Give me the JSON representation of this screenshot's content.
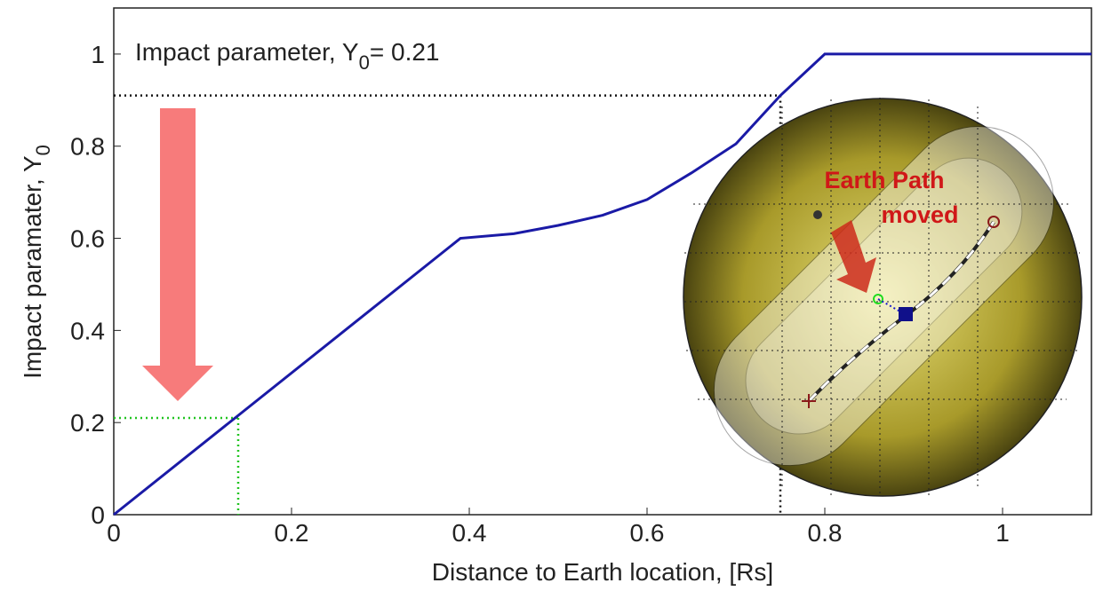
{
  "chart_data": {
    "type": "line",
    "annotation": {
      "text": "Impact parameter, Y",
      "subscript": "0",
      "suffix": "= 0.21"
    },
    "y_label": {
      "text": "Impact paramater, Y",
      "subscript": "0"
    },
    "x_label": "Distance to Earth location, [Rs]",
    "series": [
      {
        "name": "Impact parameter",
        "color": "#1a1aa6",
        "x": [
          0,
          0.39,
          0.45,
          0.5,
          0.55,
          0.6,
          0.65,
          0.7,
          0.75,
          0.8,
          1.1
        ],
        "values": [
          0,
          0.6,
          0.61,
          0.628,
          0.65,
          0.684,
          0.742,
          0.805,
          0.91,
          1.0,
          1.0
        ]
      }
    ],
    "reference_lines": [
      {
        "x": 0.75,
        "y": 0.91,
        "color": "#111111"
      },
      {
        "x": 0.14,
        "y": 0.21,
        "color": "#22c422"
      }
    ],
    "inset_label": [
      "Earth Path",
      "moved"
    ],
    "xlim": [
      0,
      1.1
    ],
    "ylim": [
      0,
      1.1
    ],
    "xticks": [
      0,
      0.2,
      0.4,
      0.6,
      0.8,
      1
    ],
    "yticks": [
      0,
      0.2,
      0.4,
      0.6,
      0.8,
      1
    ]
  }
}
